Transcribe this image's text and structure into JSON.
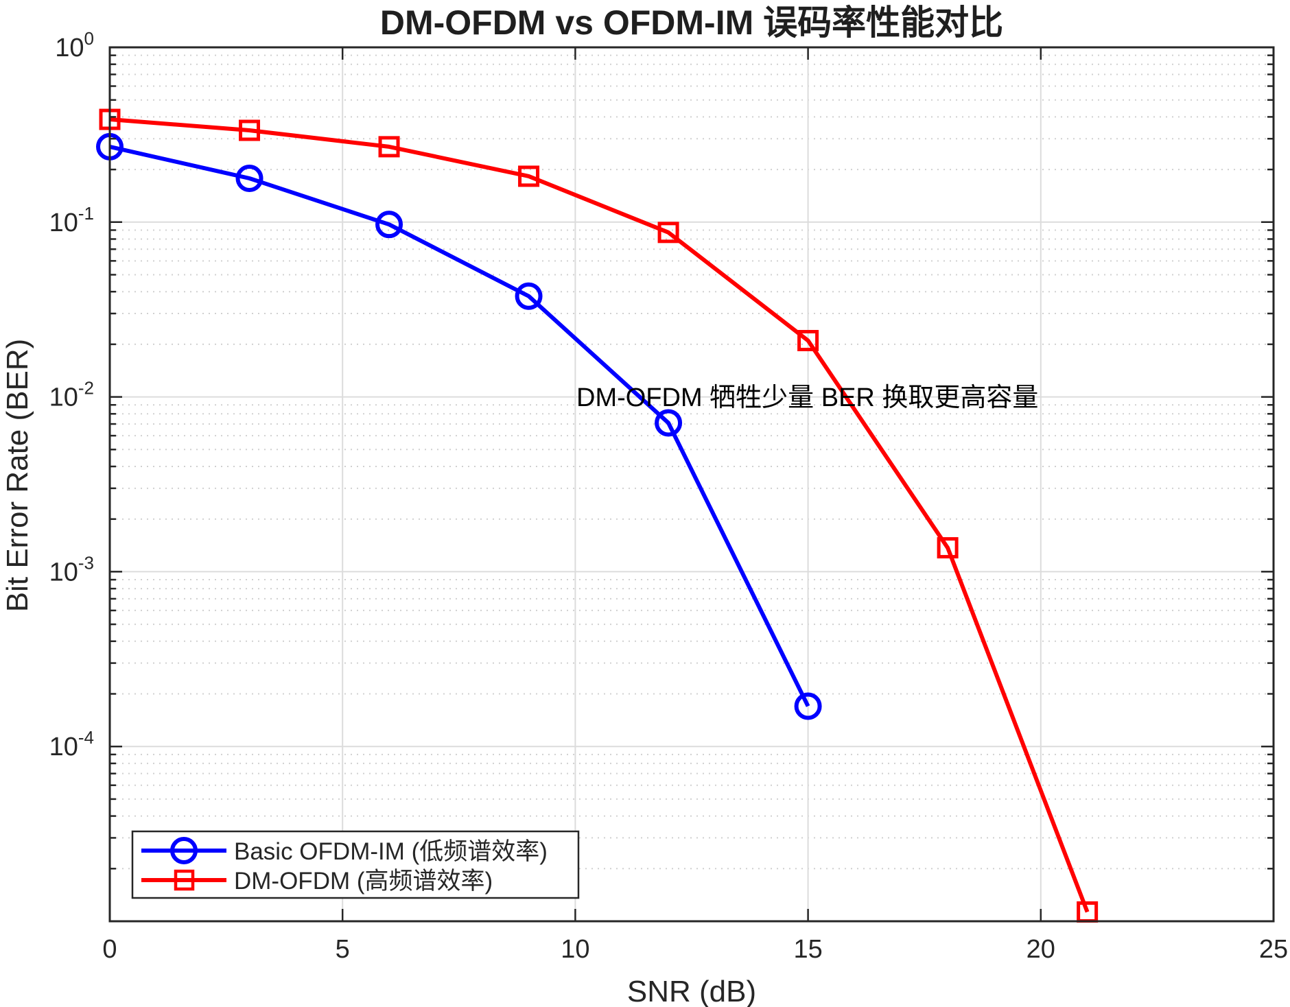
{
  "chart_data": {
    "type": "line",
    "title": "DM-OFDM vs OFDM-IM 误码率性能对比",
    "xlabel": "SNR (dB)",
    "ylabel": "Bit Error Rate (BER)",
    "xlim": [
      0,
      25
    ],
    "ylim": [
      1e-05,
      1
    ],
    "yscale": "log",
    "grid": true,
    "minor_grid": true,
    "x_ticks": [
      0,
      5,
      10,
      15,
      20,
      25
    ],
    "x_tick_labels": [
      "0",
      "5",
      "10",
      "15",
      "20",
      "25"
    ],
    "y_ticks": [
      1,
      0.1,
      0.01,
      0.001,
      0.0001
    ],
    "y_tick_labels": [
      {
        "base": "10",
        "exp": "0"
      },
      {
        "base": "10",
        "exp": "-1"
      },
      {
        "base": "10",
        "exp": "-2"
      },
      {
        "base": "10",
        "exp": "-3"
      },
      {
        "base": "10",
        "exp": "-4"
      }
    ],
    "legend_position": "lower left",
    "series": [
      {
        "name": "Basic OFDM-IM (低频谱效率)",
        "color": "#0000ff",
        "marker": "circle",
        "x": [
          0,
          3,
          6,
          9,
          12,
          15
        ],
        "values": [
          0.27,
          0.178,
          0.097,
          0.0377,
          0.0071,
          0.00017
        ]
      },
      {
        "name": "DM-OFDM (高频谱效率)",
        "color": "#ff0000",
        "marker": "square",
        "x": [
          0,
          3,
          6,
          9,
          12,
          15,
          18,
          21
        ],
        "values": [
          0.387,
          0.335,
          0.27,
          0.183,
          0.0873,
          0.021,
          0.00137,
          1.13e-05
        ]
      }
    ],
    "annotations": [
      {
        "text": "DM-OFDM 牺牲少量 BER 换取更高容量",
        "x": 10,
        "y": 0.01
      }
    ]
  },
  "colors": {
    "axis": "#262626",
    "major_grid": "#dcdcdc",
    "minor_grid": "#d0d0d0",
    "background": "#ffffff"
  }
}
